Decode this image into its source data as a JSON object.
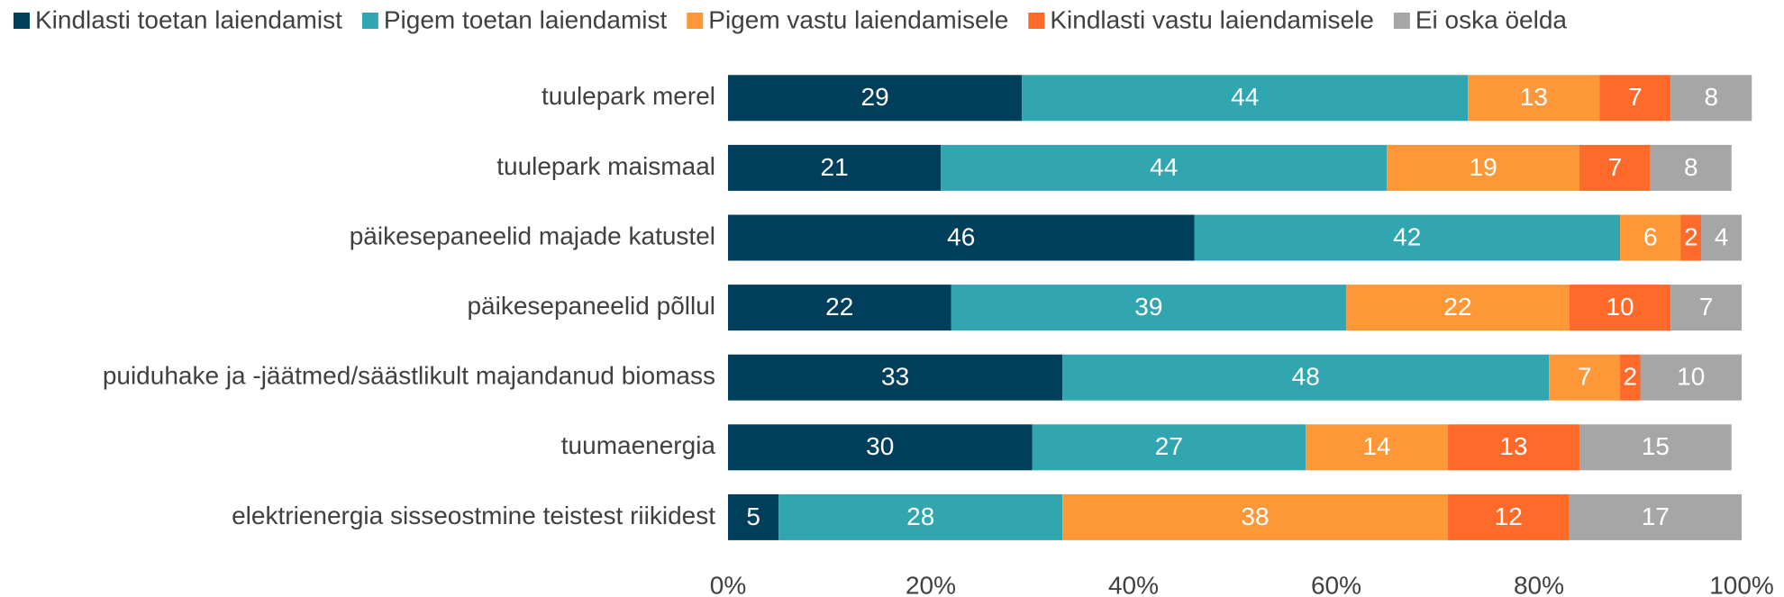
{
  "chart_data": {
    "type": "stacked-bar-horizontal",
    "categories": [
      "tuulepark merel",
      "tuulepark maismaal",
      "päikesepaneelid majade katustel",
      "päikesepaneelid põllul",
      "puiduhake ja -jäätmed/säästlikult majandanud biomass",
      "tuumaenergia",
      "elektrienergia sisseostmine teistest riikidest"
    ],
    "series": [
      {
        "name": "Kindlasti toetan laiendamist",
        "color": "#003f5c",
        "values": [
          29,
          21,
          46,
          22,
          33,
          30,
          5
        ]
      },
      {
        "name": "Pigem toetan laiendamist",
        "color": "#31a6b0",
        "values": [
          44,
          44,
          42,
          39,
          48,
          27,
          28
        ]
      },
      {
        "name": "Pigem vastu laiendamisele",
        "color": "#fd9738",
        "values": [
          13,
          19,
          6,
          22,
          7,
          14,
          38
        ]
      },
      {
        "name": "Kindlasti vastu laiendamisele",
        "color": "#fd6a2a",
        "values": [
          7,
          7,
          2,
          10,
          2,
          13,
          12
        ]
      },
      {
        "name": "Ei oska öelda",
        "color": "#a6a6a6",
        "values": [
          8,
          8,
          4,
          7,
          10,
          15,
          17
        ]
      }
    ],
    "xlim": [
      0,
      100
    ],
    "xticks": [
      {
        "value": 0,
        "label": "0%"
      },
      {
        "value": 20,
        "label": "20%"
      },
      {
        "value": 40,
        "label": "40%"
      },
      {
        "value": 60,
        "label": "60%"
      },
      {
        "value": 80,
        "label": "80%"
      },
      {
        "value": 100,
        "label": "100%"
      }
    ],
    "legend": "top"
  }
}
